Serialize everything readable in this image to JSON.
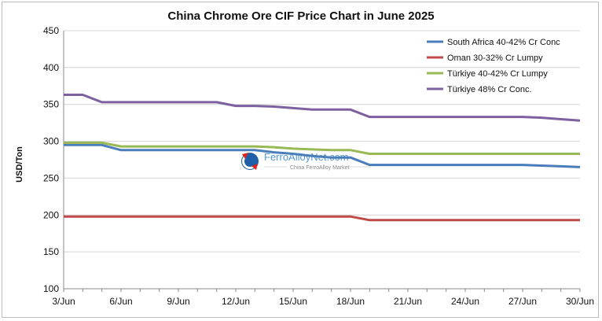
{
  "chart_data": {
    "type": "line",
    "title": "China Chrome Ore CIF Price Chart in June 2025",
    "ylabel": "USD/Ton",
    "xlabel": "",
    "ylim": [
      100,
      450
    ],
    "yticks": [
      100,
      150,
      200,
      250,
      300,
      350,
      400,
      450
    ],
    "x": [
      3,
      4,
      5,
      6,
      7,
      8,
      9,
      10,
      11,
      12,
      13,
      14,
      15,
      16,
      17,
      18,
      19,
      20,
      21,
      22,
      23,
      24,
      25,
      26,
      27,
      28,
      29,
      30
    ],
    "x_tick_positions": [
      3,
      6,
      9,
      12,
      15,
      18,
      21,
      24,
      27,
      30
    ],
    "x_tick_labels": [
      "3/Jun",
      "6/Jun",
      "9/Jun",
      "12/Jun",
      "15/Jun",
      "18/Jun",
      "21/Jun",
      "24/Jun",
      "27/Jun",
      "30/Jun"
    ],
    "grid": "horizontal",
    "legend_position": "top-right",
    "series": [
      {
        "name": "South Africa 40-42% Cr Conc",
        "color": "#4a7ebb",
        "values": [
          295,
          295,
          295,
          288,
          288,
          288,
          288,
          288,
          288,
          288,
          288,
          285,
          283,
          280,
          278,
          278,
          268,
          268,
          268,
          268,
          268,
          268,
          268,
          268,
          268,
          267,
          266,
          265
        ]
      },
      {
        "name": "Oman 30-32% Cr Lumpy",
        "color": "#be4b48",
        "values": [
          198,
          198,
          198,
          198,
          198,
          198,
          198,
          198,
          198,
          198,
          198,
          198,
          198,
          198,
          198,
          198,
          193,
          193,
          193,
          193,
          193,
          193,
          193,
          193,
          193,
          193,
          193,
          193
        ]
      },
      {
        "name": "Türkiye 40-42% Cr Lumpy",
        "color": "#98b954",
        "values": [
          298,
          298,
          298,
          293,
          293,
          293,
          293,
          293,
          293,
          293,
          293,
          292,
          290,
          289,
          288,
          288,
          283,
          283,
          283,
          283,
          283,
          283,
          283,
          283,
          283,
          283,
          283,
          283
        ]
      },
      {
        "name": "Türkiye 48% Cr Conc.",
        "color": "#7d60a0",
        "values": [
          363,
          363,
          353,
          353,
          353,
          353,
          353,
          353,
          353,
          348,
          348,
          347,
          345,
          343,
          343,
          343,
          333,
          333,
          333,
          333,
          333,
          333,
          333,
          333,
          333,
          332,
          330,
          328
        ]
      }
    ]
  },
  "watermark": {
    "brand": "FerroAlloyNet.com",
    "subtitle": "China FerroAlloy Market"
  }
}
